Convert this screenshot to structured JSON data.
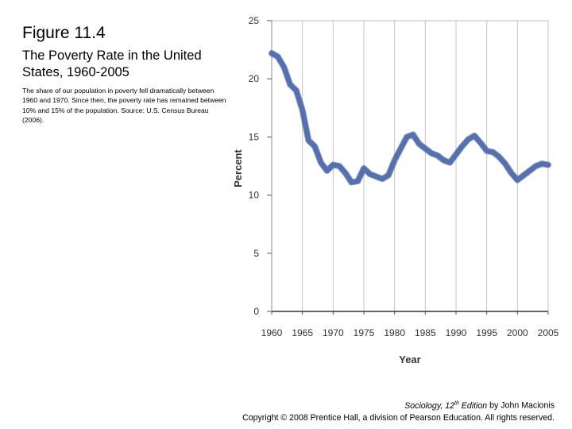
{
  "figure": {
    "number": "Figure 11.4",
    "title": "The Poverty Rate in the United States, 1960-2005",
    "description": "The share of our population in poverty fell dramatically between 1960 and 1970. Since then, the poverty rate has remained between 10% and 15% of the population. Source: U.S. Census Bureau (2006)."
  },
  "footer": {
    "book_title": "Sociology, 12",
    "edition_sup": "th",
    "edition_rest": " Edition",
    "author": " by John Macionis",
    "copyright": "Copyright © 2008 Prentice Hall, a division of Pearson Education. All rights reserved."
  },
  "chart_data": {
    "type": "line",
    "title": "",
    "xlabel": "Year",
    "ylabel": "Percent",
    "xlim": [
      1960,
      2005
    ],
    "ylim": [
      0,
      25
    ],
    "x_ticks": [
      1960,
      1965,
      1970,
      1975,
      1980,
      1985,
      1990,
      1995,
      2000,
      2005
    ],
    "y_ticks": [
      0,
      5,
      10,
      15,
      20,
      25
    ],
    "grid": "vertical",
    "line_color": "#5470b0",
    "series": [
      {
        "x": [
          1960,
          1961,
          1962,
          1963,
          1964,
          1965,
          1966,
          1967,
          1968,
          1969,
          1970,
          1971,
          1972,
          1973,
          1974,
          1975,
          1976,
          1977,
          1978,
          1979,
          1980,
          1981,
          1982,
          1983,
          1984,
          1985,
          1986,
          1987,
          1988,
          1989,
          1990,
          1991,
          1992,
          1993,
          1994,
          1995,
          1996,
          1997,
          1998,
          1999,
          2000,
          2001,
          2002,
          2003,
          2004,
          2005
        ],
        "y": [
          22.2,
          21.9,
          21.0,
          19.5,
          19.0,
          17.3,
          14.7,
          14.2,
          12.8,
          12.1,
          12.6,
          12.5,
          11.9,
          11.1,
          11.2,
          12.3,
          11.8,
          11.6,
          11.4,
          11.7,
          13.0,
          14.0,
          15.0,
          15.2,
          14.4,
          14.0,
          13.6,
          13.4,
          13.0,
          12.8,
          13.5,
          14.2,
          14.8,
          15.1,
          14.5,
          13.8,
          13.7,
          13.3,
          12.7,
          11.9,
          11.3,
          11.7,
          12.1,
          12.5,
          12.7,
          12.6
        ]
      }
    ]
  }
}
